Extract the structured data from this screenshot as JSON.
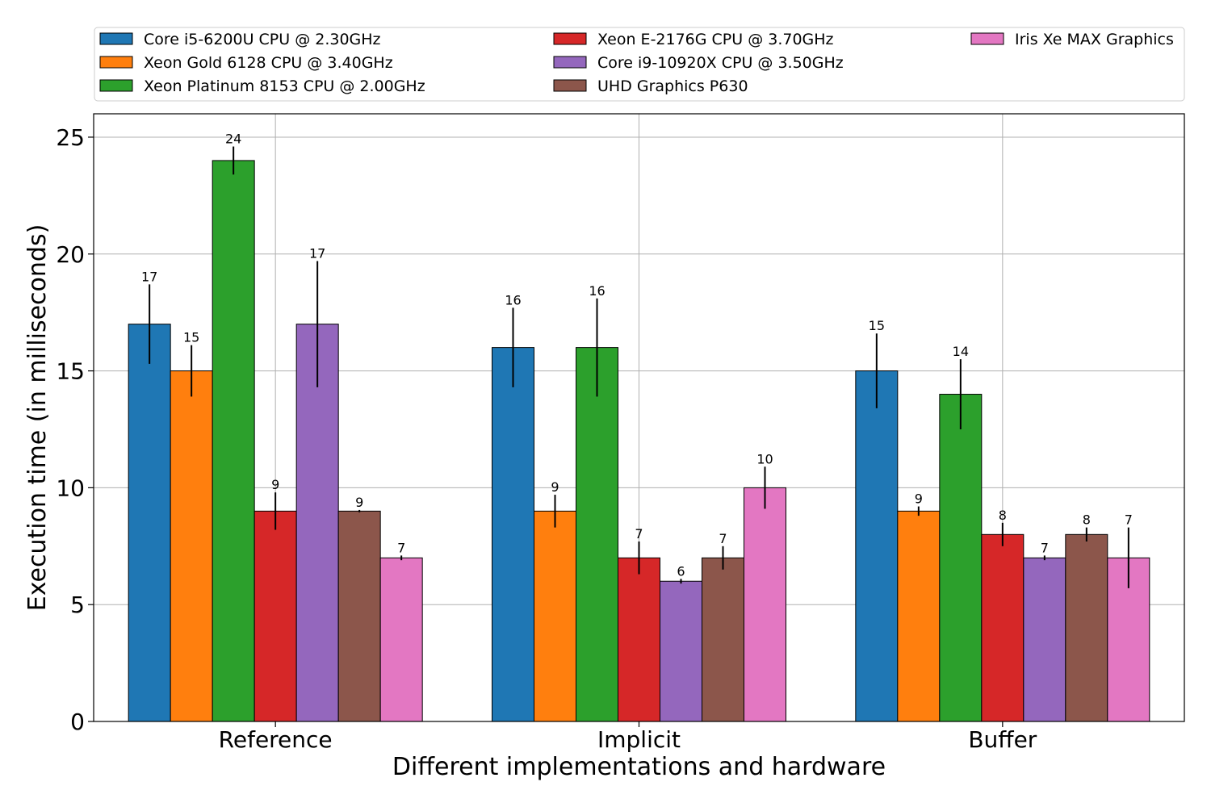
{
  "chart_data": {
    "type": "bar",
    "xlabel": "Different implementations and hardware",
    "ylabel": "Execution time (in milliseconds)",
    "ylim": [
      0,
      26
    ],
    "yticks": [
      0,
      5,
      10,
      15,
      20,
      25
    ],
    "grid": true,
    "legend_placement": "top, outside plot, 3 columns",
    "categories": [
      "Reference",
      "Implicit",
      "Buffer"
    ],
    "series": [
      {
        "name": "Core i5-6200U CPU @ 2.30GHz",
        "color": "#1f77b4",
        "values": [
          17,
          16,
          15
        ],
        "errors": [
          1.7,
          1.7,
          1.6
        ],
        "labels": [
          "17",
          "16",
          "15"
        ]
      },
      {
        "name": "Xeon Gold 6128 CPU @ 3.40GHz",
        "color": "#ff7f0e",
        "values": [
          15,
          9,
          9
        ],
        "errors": [
          1.1,
          0.7,
          0.2
        ],
        "labels": [
          "15",
          "9",
          "9"
        ]
      },
      {
        "name": "Xeon Platinum 8153 CPU @ 2.00GHz",
        "color": "#2ca02c",
        "values": [
          24,
          16,
          14
        ],
        "errors": [
          0.6,
          2.1,
          1.5
        ],
        "labels": [
          "24",
          "16",
          "14"
        ]
      },
      {
        "name": "Xeon E-2176G CPU @ 3.70GHz",
        "color": "#d62728",
        "values": [
          9,
          7,
          8
        ],
        "errors": [
          0.8,
          0.7,
          0.5
        ],
        "labels": [
          "9",
          "7",
          "8"
        ]
      },
      {
        "name": "Core i9-10920X CPU @ 3.50GHz",
        "color": "#9467bd",
        "values": [
          17,
          6,
          7
        ],
        "errors": [
          2.7,
          0.1,
          0.1
        ],
        "labels": [
          "17",
          "6",
          "7"
        ]
      },
      {
        "name": "UHD Graphics P630",
        "color": "#8c564b",
        "values": [
          9,
          7,
          8
        ],
        "errors": [
          0.05,
          0.5,
          0.3
        ],
        "labels": [
          "9",
          "7",
          "8"
        ]
      },
      {
        "name": "Iris Xe MAX Graphics",
        "color": "#e377c2",
        "values": [
          7,
          10,
          7
        ],
        "errors": [
          0.1,
          0.9,
          1.3
        ],
        "labels": [
          "7",
          "10",
          "7"
        ]
      }
    ]
  }
}
